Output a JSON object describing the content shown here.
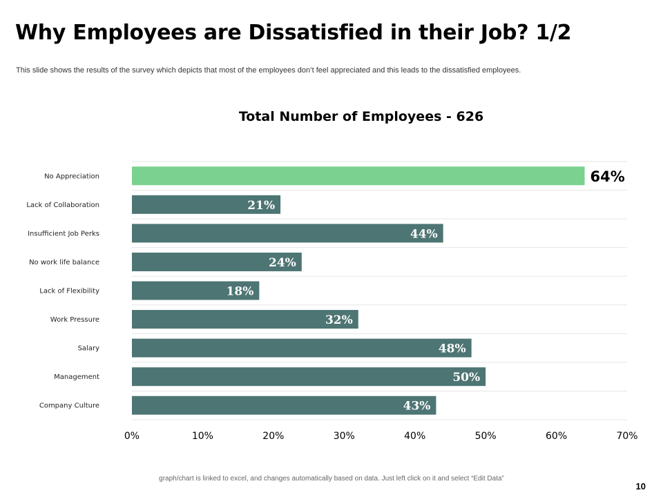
{
  "slide": {
    "title": "Why Employees are Dissatisfied in their Job? 1/2",
    "subtitle": "This slide shows the results of the survey which depicts that most of the employees don’t feel appreciated and this leads to the dissatisfied employees.",
    "footer_note": "graph/chart is linked to excel, and changes automatically based on data. Just left click on it and select “Edit Data”",
    "page_number": "10"
  },
  "colors": {
    "bar": "#4d7573",
    "highlight_bar": "#7bd18f",
    "grid": "#e6e6e6",
    "inside_label": "#ffffff",
    "outside_label": "#000000"
  },
  "chart_data": {
    "type": "bar",
    "orientation": "horizontal",
    "title": "Total Number of Employees - 626",
    "categories": [
      "No Appreciation",
      "Lack of Collaboration",
      "Insufficient Job Perks",
      "No work life balance",
      "Lack of Flexibility",
      "Work Pressure",
      "Salary",
      "Management",
      "Company Culture"
    ],
    "values": [
      64,
      21,
      44,
      24,
      18,
      32,
      48,
      50,
      43
    ],
    "value_labels": [
      "64%",
      "21%",
      "44%",
      "24%",
      "18%",
      "32%",
      "48%",
      "50%",
      "43%"
    ],
    "highlight_index": 0,
    "xlim": [
      0,
      70
    ],
    "x_ticks": [
      0,
      10,
      20,
      30,
      40,
      50,
      60,
      70
    ],
    "x_tick_labels": [
      "0%",
      "10%",
      "20%",
      "30%",
      "40%",
      "50%",
      "60%",
      "70%"
    ],
    "xlabel": "",
    "ylabel": "",
    "grid": "horizontal"
  }
}
